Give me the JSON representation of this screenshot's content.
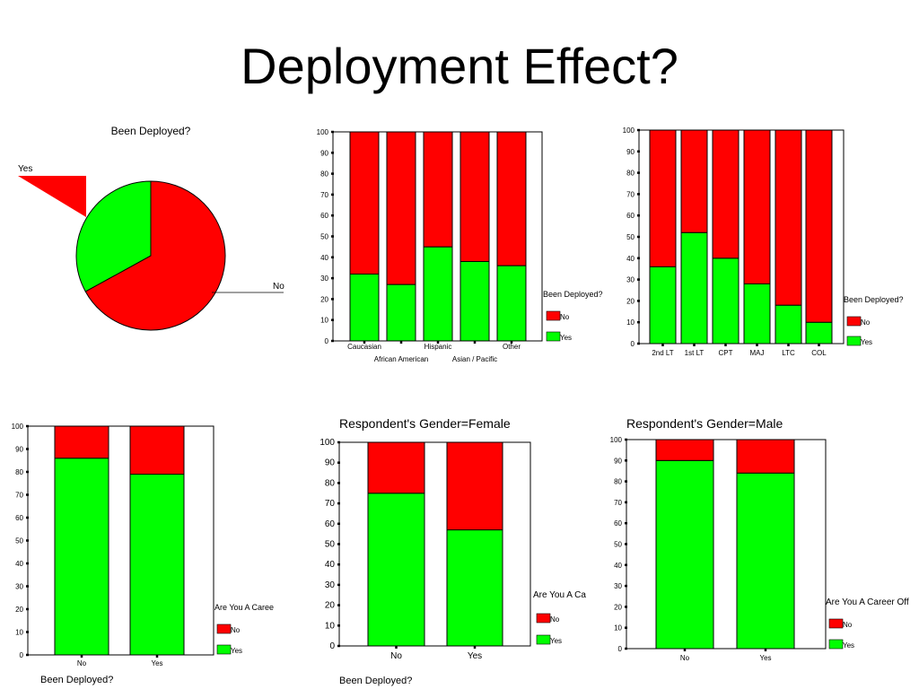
{
  "page": {
    "title": "Deployment Effect?"
  },
  "colors": {
    "no": "#ff0000",
    "yes": "#00ff00"
  },
  "chart_data": [
    {
      "type": "pie",
      "title": "Been Deployed?",
      "slices": [
        {
          "label": "No",
          "value": 67
        },
        {
          "label": "Yes",
          "value": 33
        }
      ]
    },
    {
      "type": "bar",
      "stacked": true,
      "categories": [
        "Caucasian",
        "African American",
        "Hispanic",
        "Asian / Pacific",
        "Other"
      ],
      "series": [
        {
          "name": "No",
          "values": [
            68,
            73,
            55,
            62,
            64
          ]
        },
        {
          "name": "Yes",
          "values": [
            32,
            27,
            45,
            38,
            36
          ]
        }
      ],
      "ylim": [
        0,
        100
      ],
      "yticks": [
        0,
        10,
        20,
        30,
        40,
        50,
        60,
        70,
        80,
        90,
        100
      ],
      "legend_title": "Been Deployed?"
    },
    {
      "type": "bar",
      "stacked": true,
      "categories": [
        "2nd LT",
        "1st LT",
        "CPT",
        "MAJ",
        "LTC",
        "COL"
      ],
      "series": [
        {
          "name": "No",
          "values": [
            64,
            48,
            60,
            72,
            82,
            90
          ]
        },
        {
          "name": "Yes",
          "values": [
            36,
            52,
            40,
            28,
            18,
            10
          ]
        }
      ],
      "ylim": [
        0,
        100
      ],
      "yticks": [
        0,
        10,
        20,
        30,
        40,
        50,
        60,
        70,
        80,
        90,
        100
      ],
      "legend_title": "Been Deployed?"
    },
    {
      "type": "bar",
      "stacked": true,
      "categories": [
        "No",
        "Yes"
      ],
      "series": [
        {
          "name": "No",
          "values": [
            14,
            21
          ]
        },
        {
          "name": "Yes",
          "values": [
            86,
            79
          ]
        }
      ],
      "ylim": [
        0,
        100
      ],
      "yticks": [
        0,
        10,
        20,
        30,
        40,
        50,
        60,
        70,
        80,
        90,
        100
      ],
      "xlabel": "Been Deployed?",
      "legend_title": "Are You A Caree"
    },
    {
      "type": "bar",
      "stacked": true,
      "title": "Respondent's Gender=Female",
      "categories": [
        "No",
        "Yes"
      ],
      "series": [
        {
          "name": "No",
          "values": [
            25,
            43
          ]
        },
        {
          "name": "Yes",
          "values": [
            75,
            57
          ]
        }
      ],
      "ylim": [
        0,
        100
      ],
      "yticks": [
        0,
        10,
        20,
        30,
        40,
        50,
        60,
        70,
        80,
        90,
        100
      ],
      "xlabel": "Been Deployed?",
      "legend_title": "Are You A Ca"
    },
    {
      "type": "bar",
      "stacked": true,
      "title": "Respondent's Gender=Male",
      "categories": [
        "No",
        "Yes"
      ],
      "series": [
        {
          "name": "No",
          "values": [
            10,
            16
          ]
        },
        {
          "name": "Yes",
          "values": [
            90,
            84
          ]
        }
      ],
      "ylim": [
        0,
        100
      ],
      "yticks": [
        0,
        10,
        20,
        30,
        40,
        50,
        60,
        70,
        80,
        90,
        100
      ],
      "legend_title": "Are You A Career Off"
    }
  ]
}
